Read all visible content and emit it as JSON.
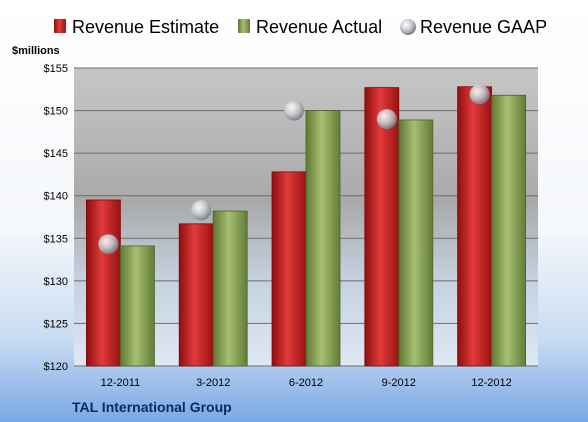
{
  "chart_data": {
    "type": "bar",
    "title": "",
    "caption": "TAL International Group",
    "ylabel": "$millions",
    "xlabel": "",
    "ylim": [
      120,
      155
    ],
    "yticks": [
      120,
      125,
      130,
      135,
      140,
      145,
      150,
      155
    ],
    "ytick_labels": [
      "$120",
      "$125",
      "$130",
      "$135",
      "$140",
      "$145",
      "$150",
      "$155"
    ],
    "categories": [
      "12-2011",
      "3-2012",
      "6-2012",
      "9-2012",
      "12-2012"
    ],
    "grid": true,
    "legend_position": "top",
    "series": [
      {
        "name": "Revenue Estimate",
        "kind": "bar",
        "color": "#cc1f1f",
        "values": [
          139.5,
          136.7,
          142.8,
          152.7,
          152.8
        ]
      },
      {
        "name": "Revenue Actual",
        "kind": "bar",
        "color": "#8ea65a",
        "values": [
          134.1,
          138.2,
          150.0,
          148.9,
          151.8
        ]
      },
      {
        "name": "Revenue GAAP",
        "kind": "marker",
        "color": "#b9bcc4",
        "values": [
          134.3,
          138.3,
          150.0,
          149.0,
          151.9
        ]
      }
    ]
  }
}
